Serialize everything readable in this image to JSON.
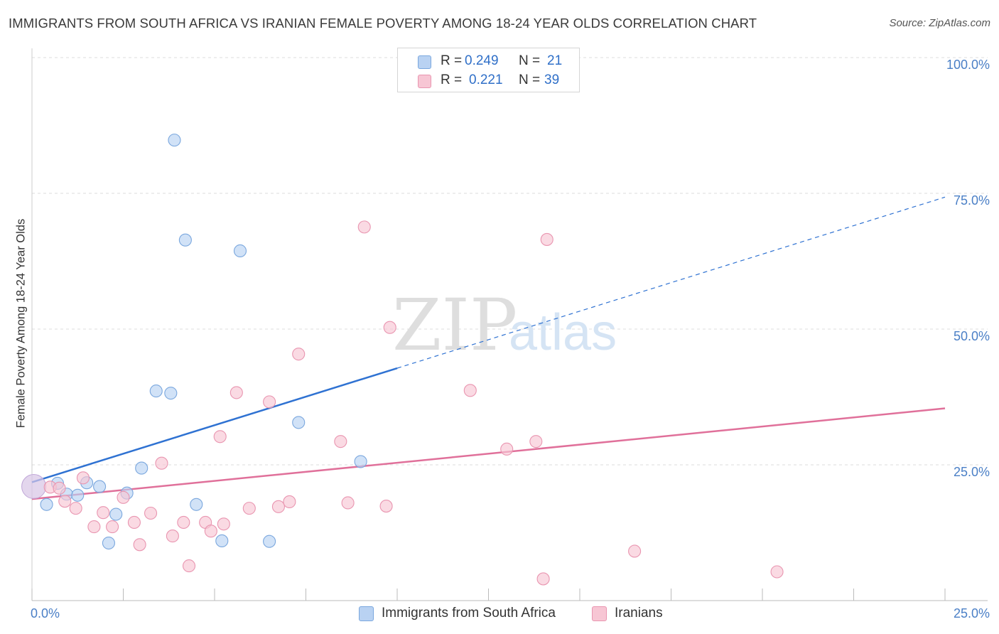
{
  "title": "IMMIGRANTS FROM SOUTH AFRICA VS IRANIAN FEMALE POVERTY AMONG 18-24 YEAR OLDS CORRELATION CHART",
  "source": "Source: ZipAtlas.com",
  "watermark": {
    "zip": "ZIP",
    "atlas": "atlas"
  },
  "colors": {
    "blue_fill": "#b9d2f2",
    "blue_stroke": "#7aa7de",
    "blue_line": "#2f72d2",
    "pink_fill": "#f7c6d4",
    "pink_stroke": "#e995b0",
    "pink_line": "#e0709a",
    "tick_text": "#4a7fc6",
    "grid": "#dddddd"
  },
  "legend": {
    "rows": [
      {
        "r_label": "R =",
        "r_value": "0.249",
        "n_label": "N =",
        "n_value": "21"
      },
      {
        "r_label": "R =",
        "r_value": "0.221",
        "n_label": "N =",
        "n_value": "39"
      }
    ]
  },
  "bottom_legend": [
    "Immigrants from South Africa",
    "Iranians"
  ],
  "chart_data": {
    "type": "scatter",
    "title": "IMMIGRANTS FROM SOUTH AFRICA VS IRANIAN FEMALE POVERTY AMONG 18-24 YEAR OLDS CORRELATION CHART",
    "xlabel": "",
    "ylabel": "Female Poverty Among 18-24 Year Olds",
    "xlim": [
      0,
      25
    ],
    "ylim": [
      0,
      100
    ],
    "x_tick_labels": [
      "0.0%",
      "25.0%"
    ],
    "y_ticks": [
      25,
      50,
      75,
      100
    ],
    "y_tick_labels": [
      "25.0%",
      "50.0%",
      "75.0%",
      "100.0%"
    ],
    "grid": true,
    "legend_placement": "top-center",
    "series": [
      {
        "name": "Immigrants from South Africa",
        "r": 0.249,
        "n": 21,
        "trend": {
          "x": [
            0,
            10
          ],
          "y": [
            21.8,
            42.8
          ],
          "dashed_extension_to": [
            25,
            74.3
          ]
        },
        "points": [
          {
            "x": 0.05,
            "y": 21.0
          },
          {
            "x": 0.4,
            "y": 17.7
          },
          {
            "x": 0.7,
            "y": 21.6
          },
          {
            "x": 0.95,
            "y": 19.6
          },
          {
            "x": 1.25,
            "y": 19.4
          },
          {
            "x": 1.5,
            "y": 21.7
          },
          {
            "x": 1.85,
            "y": 21.0
          },
          {
            "x": 2.1,
            "y": 10.6
          },
          {
            "x": 2.3,
            "y": 15.9
          },
          {
            "x": 2.6,
            "y": 19.8
          },
          {
            "x": 3.0,
            "y": 24.4
          },
          {
            "x": 3.4,
            "y": 38.6
          },
          {
            "x": 3.8,
            "y": 38.2
          },
          {
            "x": 3.9,
            "y": 84.8
          },
          {
            "x": 4.2,
            "y": 66.4
          },
          {
            "x": 4.5,
            "y": 17.7
          },
          {
            "x": 5.2,
            "y": 11.0
          },
          {
            "x": 5.7,
            "y": 64.4
          },
          {
            "x": 6.5,
            "y": 10.9
          },
          {
            "x": 7.3,
            "y": 32.8
          },
          {
            "x": 9.0,
            "y": 25.6
          }
        ]
      },
      {
        "name": "Iranians",
        "r": 0.221,
        "n": 39,
        "trend": {
          "x": [
            0,
            25
          ],
          "y": [
            18.7,
            35.4
          ]
        },
        "points": [
          {
            "x": 0.05,
            "y": 21.0
          },
          {
            "x": 0.5,
            "y": 20.9
          },
          {
            "x": 0.75,
            "y": 20.7
          },
          {
            "x": 0.9,
            "y": 18.3
          },
          {
            "x": 1.2,
            "y": 17.0
          },
          {
            "x": 1.4,
            "y": 22.6
          },
          {
            "x": 1.7,
            "y": 13.6
          },
          {
            "x": 1.95,
            "y": 16.2
          },
          {
            "x": 2.2,
            "y": 13.6
          },
          {
            "x": 2.5,
            "y": 19.0
          },
          {
            "x": 2.8,
            "y": 14.4
          },
          {
            "x": 2.95,
            "y": 10.3
          },
          {
            "x": 3.25,
            "y": 16.1
          },
          {
            "x": 3.55,
            "y": 25.3
          },
          {
            "x": 3.85,
            "y": 11.9
          },
          {
            "x": 4.15,
            "y": 14.4
          },
          {
            "x": 4.3,
            "y": 6.4
          },
          {
            "x": 4.75,
            "y": 14.4
          },
          {
            "x": 4.9,
            "y": 12.8
          },
          {
            "x": 5.15,
            "y": 30.2
          },
          {
            "x": 5.25,
            "y": 14.1
          },
          {
            "x": 5.6,
            "y": 38.3
          },
          {
            "x": 5.95,
            "y": 17.0
          },
          {
            "x": 6.5,
            "y": 36.6
          },
          {
            "x": 6.75,
            "y": 17.3
          },
          {
            "x": 7.05,
            "y": 18.2
          },
          {
            "x": 7.3,
            "y": 45.4
          },
          {
            "x": 8.45,
            "y": 29.3
          },
          {
            "x": 8.65,
            "y": 18.0
          },
          {
            "x": 9.1,
            "y": 68.8
          },
          {
            "x": 9.7,
            "y": 17.4
          },
          {
            "x": 9.8,
            "y": 50.3
          },
          {
            "x": 12.0,
            "y": 38.7
          },
          {
            "x": 13.0,
            "y": 27.9
          },
          {
            "x": 14.0,
            "y": 4.0
          },
          {
            "x": 13.8,
            "y": 29.3
          },
          {
            "x": 14.1,
            "y": 66.5
          },
          {
            "x": 16.5,
            "y": 9.1
          },
          {
            "x": 20.4,
            "y": 5.3
          }
        ]
      }
    ]
  }
}
